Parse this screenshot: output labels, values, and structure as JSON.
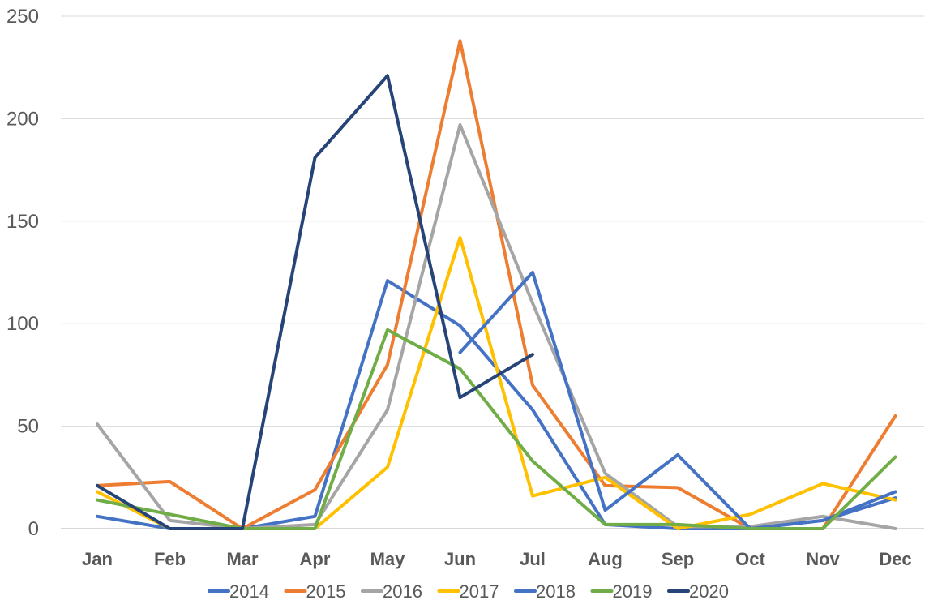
{
  "chart_data": {
    "type": "line",
    "title": "",
    "xlabel": "",
    "ylabel": "",
    "ylim": [
      0,
      250
    ],
    "yticks": [
      0,
      50,
      100,
      150,
      200,
      250
    ],
    "grid": true,
    "legend": "bottom",
    "categories": [
      "Jan",
      "Feb",
      "Mar",
      "Apr",
      "May",
      "Jun",
      "Jul",
      "Aug",
      "Sep",
      "Oct",
      "Nov",
      "Dec"
    ],
    "series": [
      {
        "name": "2014",
        "color": "#4472c4",
        "values": [
          6,
          0,
          0,
          6,
          121,
          99,
          58,
          2,
          0,
          0,
          4,
          15
        ]
      },
      {
        "name": "2015",
        "color": "#ed7d31",
        "values": [
          21,
          23,
          0,
          19,
          80,
          238,
          70,
          21,
          20,
          0,
          0,
          55
        ]
      },
      {
        "name": "2016",
        "color": "#a5a5a5",
        "values": [
          51,
          4,
          0,
          2,
          58,
          197,
          110,
          27,
          1,
          1,
          6,
          0
        ]
      },
      {
        "name": "2017",
        "color": "#ffc000",
        "values": [
          18,
          0,
          0,
          0,
          30,
          142,
          16,
          25,
          0,
          7,
          22,
          14
        ]
      },
      {
        "name": "2018",
        "color": "#4472c4",
        "values": [
          null,
          null,
          null,
          null,
          null,
          86,
          125,
          9,
          36,
          0,
          4,
          18
        ]
      },
      {
        "name": "2019",
        "color": "#70ad47",
        "values": [
          14,
          7,
          0,
          0,
          97,
          78,
          33,
          2,
          2,
          0,
          0,
          35
        ]
      },
      {
        "name": "2020",
        "color": "#264478",
        "values": [
          21,
          0,
          0,
          181,
          221,
          64,
          85,
          null,
          null,
          null,
          null,
          null
        ]
      }
    ]
  }
}
